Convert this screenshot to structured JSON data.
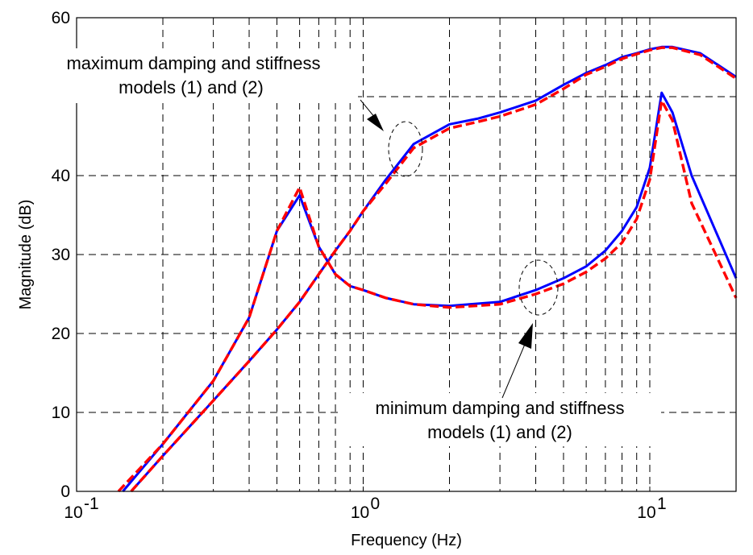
{
  "chart_data": {
    "type": "line",
    "xlabel": "Frequency (Hz)",
    "ylabel": "Magnitude (dB)",
    "xscale": "log",
    "xlim": [
      0.1,
      20
    ],
    "ylim": [
      0,
      60
    ],
    "grid": true,
    "x_ticks": [
      {
        "value": 0.1,
        "base": "10",
        "exp": "-1"
      },
      {
        "value": 1,
        "base": "10",
        "exp": "0"
      },
      {
        "value": 10,
        "base": "10",
        "exp": "1"
      }
    ],
    "y_ticks": [
      0,
      10,
      20,
      30,
      40,
      50,
      60
    ],
    "series": [
      {
        "color": "#0000ff",
        "style": "solid",
        "x": [
          0.155,
          0.2,
          0.3,
          0.4,
          0.5,
          0.6,
          0.7,
          0.8,
          0.9,
          1.0,
          1.2,
          1.5,
          2,
          2.5,
          3,
          4,
          5,
          6,
          7,
          8,
          9,
          10,
          11,
          12,
          15,
          20
        ],
        "y": [
          0,
          4.5,
          11.5,
          16.5,
          20.5,
          24,
          27.5,
          30.5,
          33,
          35.5,
          39.5,
          44,
          46.5,
          47.2,
          48,
          49.5,
          51.5,
          53,
          54,
          55,
          55.5,
          56,
          56.3,
          56.3,
          55.5,
          52.5
        ]
      },
      {
        "color": "#ff0000",
        "style": "dashed",
        "x": [
          0.155,
          0.2,
          0.3,
          0.4,
          0.5,
          0.6,
          0.7,
          0.8,
          0.9,
          1.0,
          1.2,
          1.5,
          2,
          2.5,
          3,
          4,
          5,
          6,
          7,
          8,
          9,
          10,
          11,
          12,
          15,
          20
        ],
        "y": [
          0,
          4.5,
          11.5,
          16.5,
          20.5,
          24,
          27.5,
          30.5,
          33,
          35.5,
          39,
          43.5,
          46,
          46.8,
          47.5,
          49,
          51,
          52.8,
          53.8,
          54.8,
          55.4,
          55.9,
          56.2,
          56.2,
          55.3,
          52.3
        ]
      },
      {
        "color": "#0000ff",
        "style": "solid",
        "x": [
          0.145,
          0.2,
          0.3,
          0.4,
          0.5,
          0.6,
          0.7,
          0.8,
          0.9,
          1.0,
          1.2,
          1.5,
          2,
          3,
          4,
          5,
          6,
          7,
          8,
          9,
          10,
          11,
          12,
          14,
          20
        ],
        "y": [
          0,
          6,
          14,
          22,
          33,
          37.5,
          31,
          27.5,
          26,
          25.5,
          24.5,
          23.7,
          23.5,
          24,
          25.5,
          27,
          28.5,
          30.5,
          33,
          36,
          41,
          50.5,
          48,
          40,
          27
        ]
      },
      {
        "color": "#ff0000",
        "style": "dashed",
        "x": [
          0.14,
          0.2,
          0.3,
          0.4,
          0.5,
          0.6,
          0.7,
          0.8,
          0.9,
          1.0,
          1.2,
          1.5,
          2,
          3,
          4,
          5,
          6,
          7,
          8,
          9,
          10,
          11,
          12,
          14,
          20
        ],
        "y": [
          0,
          6,
          14,
          22,
          33,
          38.5,
          31,
          27.5,
          26,
          25.5,
          24.5,
          23.7,
          23.3,
          23.7,
          25,
          26.3,
          27.8,
          29.5,
          31.5,
          34.5,
          39.5,
          49.5,
          47,
          36.5,
          24.5
        ]
      }
    ],
    "annotations": [
      {
        "lines": [
          "maximum damping and stiffness",
          "models (1) and (2)"
        ]
      },
      {
        "lines": [
          "minimum damping and stiffness",
          "models (1) and (2)"
        ]
      }
    ]
  }
}
